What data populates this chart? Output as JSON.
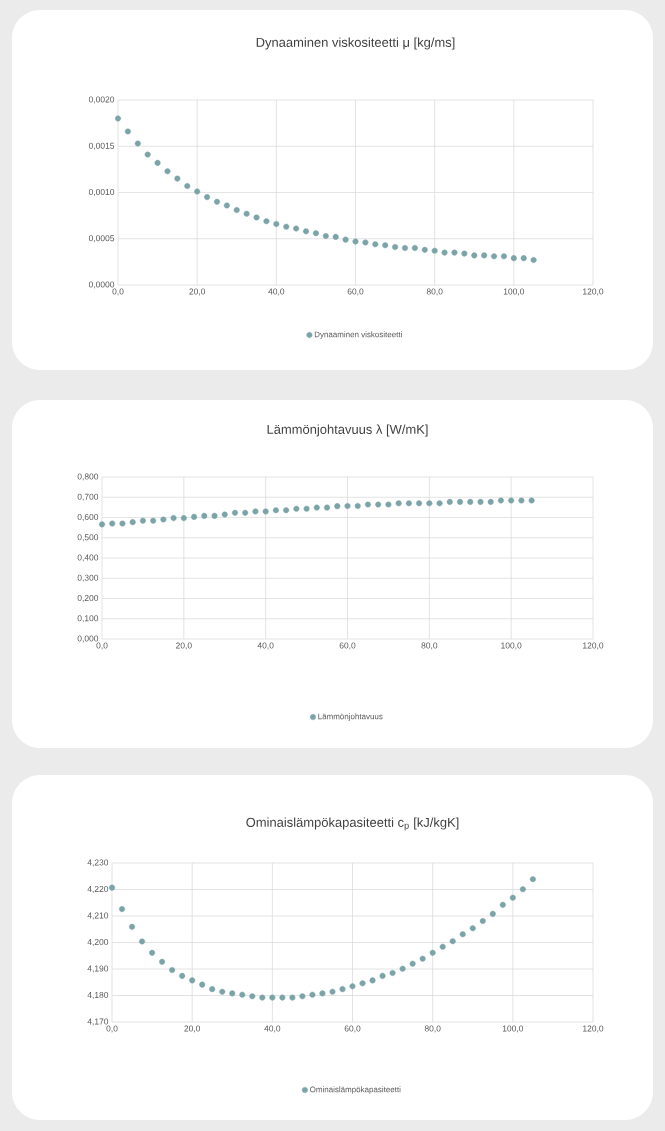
{
  "chart_data": [
    {
      "type": "scatter",
      "title": "Dynaaminen viskositeetti μ [kg/ms]",
      "grid": true,
      "legend": "bottom",
      "marker": "circle",
      "x": [
        0,
        2.5,
        5,
        7.5,
        10,
        12.5,
        15,
        17.5,
        20,
        22.5,
        25,
        27.5,
        30,
        32.5,
        35,
        37.5,
        40,
        42.5,
        45,
        47.5,
        50,
        52.5,
        55,
        57.5,
        60,
        62.5,
        65,
        67.5,
        70,
        72.5,
        75,
        77.5,
        80,
        82.5,
        85,
        87.5,
        90,
        92.5,
        95,
        97.5,
        100,
        102.5,
        105
      ],
      "series": [
        {
          "name": "Dynaaminen viskositeetti",
          "color": "#7ba4a8",
          "values": [
            0.0018,
            0.00166,
            0.00153,
            0.00141,
            0.00132,
            0.00123,
            0.00115,
            0.00107,
            0.00101,
            0.00095,
            0.0009,
            0.00086,
            0.00081,
            0.00077,
            0.00073,
            0.00069,
            0.00066,
            0.00063,
            0.00061,
            0.00058,
            0.00056,
            0.00053,
            0.00052,
            0.00049,
            0.00047,
            0.00046,
            0.00044,
            0.00043,
            0.00041,
            0.0004,
            0.0004,
            0.00038,
            0.00037,
            0.00035,
            0.00035,
            0.00034,
            0.00032,
            0.00032,
            0.00031,
            0.00031,
            0.00029,
            0.00029,
            0.00027
          ]
        }
      ],
      "xlim": [
        0,
        120
      ],
      "xticks": [
        {
          "value": 0,
          "label": "0,0"
        },
        {
          "value": 20,
          "label": "20,0"
        },
        {
          "value": 40,
          "label": "40,0"
        },
        {
          "value": 60,
          "label": "60,0"
        },
        {
          "value": 80,
          "label": "80,0"
        },
        {
          "value": 100,
          "label": "100,0"
        },
        {
          "value": 120,
          "label": "120,0"
        }
      ],
      "ylim": [
        0,
        0.002
      ],
      "yticks": [
        {
          "value": 0,
          "label": "0,0000"
        },
        {
          "value": 0.0005,
          "label": "0,0005"
        },
        {
          "value": 0.001,
          "label": "0,0010"
        },
        {
          "value": 0.0015,
          "label": "0,0015"
        },
        {
          "value": 0.002,
          "label": "0,0020"
        }
      ]
    },
    {
      "type": "scatter",
      "title": "Lämmönjohtavuus λ [W/mK]",
      "grid": true,
      "legend": "bottom",
      "marker": "circle",
      "x": [
        0,
        2.5,
        5,
        7.5,
        10,
        12.5,
        15,
        17.5,
        20,
        22.5,
        25,
        27.5,
        30,
        32.5,
        35,
        37.5,
        40,
        42.5,
        45,
        47.5,
        50,
        52.5,
        55,
        57.5,
        60,
        62.5,
        65,
        67.5,
        70,
        72.5,
        75,
        77.5,
        80,
        82.5,
        85,
        87.5,
        90,
        92.5,
        95,
        97.5,
        100,
        102.5,
        105
      ],
      "series": [
        {
          "name": "Lämmönjohtavuus",
          "color": "#7ba4a8",
          "values": [
            0.566,
            0.57,
            0.57,
            0.577,
            0.584,
            0.584,
            0.59,
            0.597,
            0.597,
            0.603,
            0.608,
            0.608,
            0.615,
            0.623,
            0.623,
            0.63,
            0.63,
            0.636,
            0.636,
            0.643,
            0.643,
            0.649,
            0.649,
            0.656,
            0.657,
            0.657,
            0.664,
            0.664,
            0.664,
            0.67,
            0.67,
            0.67,
            0.67,
            0.67,
            0.677,
            0.677,
            0.677,
            0.677,
            0.677,
            0.684,
            0.684,
            0.684,
            0.684
          ]
        }
      ],
      "xlim": [
        0,
        120
      ],
      "xticks": [
        {
          "value": 0,
          "label": "0,0"
        },
        {
          "value": 20,
          "label": "20,0"
        },
        {
          "value": 40,
          "label": "40,0"
        },
        {
          "value": 60,
          "label": "60,0"
        },
        {
          "value": 80,
          "label": "80,0"
        },
        {
          "value": 100,
          "label": "100,0"
        },
        {
          "value": 120,
          "label": "120,0"
        }
      ],
      "ylim": [
        0,
        0.8
      ],
      "yticks": [
        {
          "value": 0,
          "label": "0,000"
        },
        {
          "value": 0.1,
          "label": "0,100"
        },
        {
          "value": 0.2,
          "label": "0,200"
        },
        {
          "value": 0.3,
          "label": "0,300"
        },
        {
          "value": 0.4,
          "label": "0,400"
        },
        {
          "value": 0.5,
          "label": "0,500"
        },
        {
          "value": 0.6,
          "label": "0,600"
        },
        {
          "value": 0.7,
          "label": "0,700"
        },
        {
          "value": 0.8,
          "label": "0,800"
        }
      ]
    },
    {
      "type": "scatter",
      "title": "Ominaislämpökapasiteetti c$_{p}$ [kJ/kgK]",
      "grid": true,
      "legend": "bottom",
      "marker": "circle",
      "x": [
        0,
        2.5,
        5,
        7.5,
        10,
        12.5,
        15,
        17.5,
        20,
        22.5,
        25,
        27.5,
        30,
        32.5,
        35,
        37.5,
        40,
        42.5,
        45,
        47.5,
        50,
        52.5,
        55,
        57.5,
        60,
        62.5,
        65,
        67.5,
        70,
        72.5,
        75,
        77.5,
        80,
        82.5,
        85,
        87.5,
        90,
        92.5,
        95,
        97.5,
        100,
        102.5,
        105
      ],
      "series": [
        {
          "name": "Ominaislämpökapasiteetti",
          "color": "#7ba4a8",
          "values": [
            4.2207,
            4.2126,
            4.2059,
            4.2004,
            4.1961,
            4.1927,
            4.1896,
            4.1874,
            4.1857,
            4.1841,
            4.1824,
            4.1814,
            4.1808,
            4.1803,
            4.1797,
            4.1792,
            4.1792,
            4.1792,
            4.1792,
            4.1797,
            4.1803,
            4.1808,
            4.1814,
            4.1824,
            4.1835,
            4.1846,
            4.1857,
            4.1874,
            4.1885,
            4.1901,
            4.192,
            4.1939,
            4.1961,
            4.1984,
            4.2005,
            4.2031,
            4.2054,
            4.2081,
            4.2108,
            4.2142,
            4.2169,
            4.2201,
            4.2239
          ]
        }
      ],
      "xlim": [
        0,
        120
      ],
      "xticks": [
        {
          "value": 0,
          "label": "0,0"
        },
        {
          "value": 20,
          "label": "20,0"
        },
        {
          "value": 40,
          "label": "40,0"
        },
        {
          "value": 60,
          "label": "60,0"
        },
        {
          "value": 80,
          "label": "80,0"
        },
        {
          "value": 100,
          "label": "100,0"
        },
        {
          "value": 120,
          "label": "120,0"
        }
      ],
      "ylim": [
        4.17,
        4.23
      ],
      "yticks": [
        {
          "value": 4.17,
          "label": "4,170"
        },
        {
          "value": 4.18,
          "label": "4,180"
        },
        {
          "value": 4.19,
          "label": "4,190"
        },
        {
          "value": 4.2,
          "label": "4,200"
        },
        {
          "value": 4.21,
          "label": "4,210"
        },
        {
          "value": 4.22,
          "label": "4,220"
        },
        {
          "value": 4.23,
          "label": "4,230"
        }
      ]
    }
  ]
}
